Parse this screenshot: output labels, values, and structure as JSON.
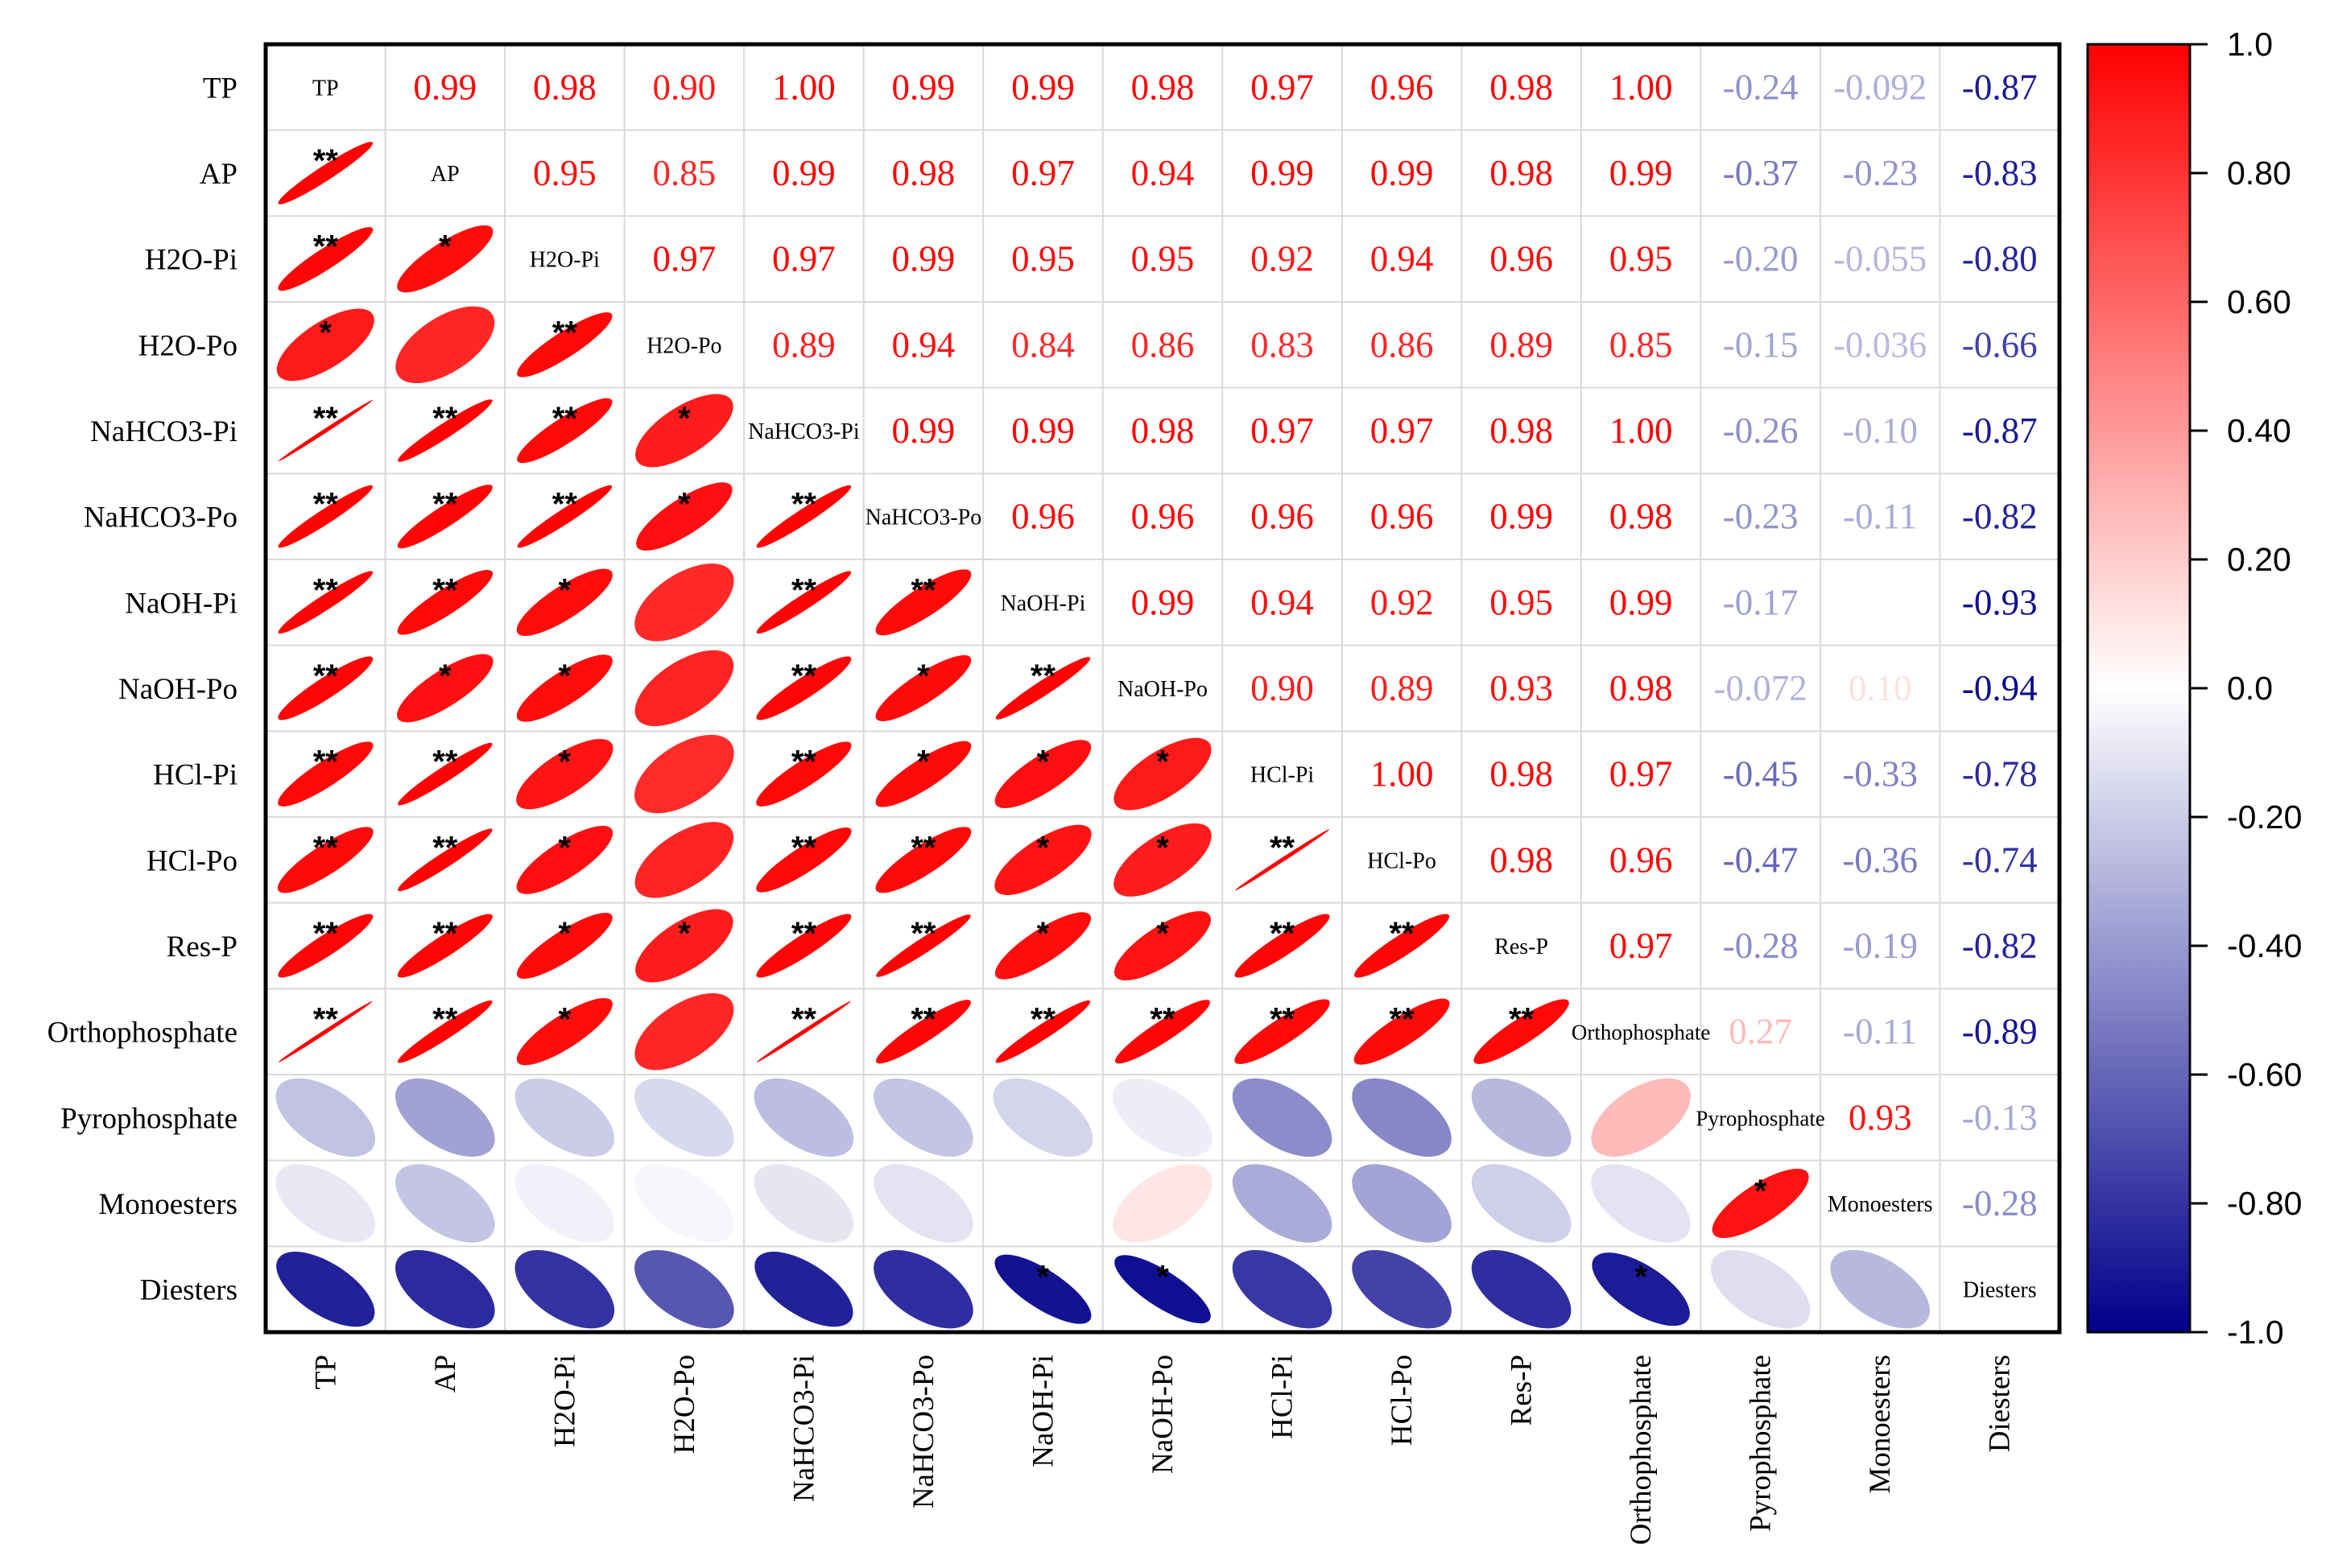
{
  "chart_data": {
    "type": "heatmap",
    "subtype": "correlation-ellipse-matrix",
    "title": "",
    "variables": [
      "TP",
      "AP",
      "H2O-Pi",
      "H2O-Po",
      "NaHCO3-Pi",
      "NaHCO3-Po",
      "NaOH-Pi",
      "NaOH-Po",
      "HCl-Pi",
      "HCl-Po",
      "Res-P",
      "Orthophosphate",
      "Pyrophosphate",
      "Monoesters",
      "Diesters"
    ],
    "upper_labels": [
      [
        null,
        "0.99",
        "0.98",
        "0.90",
        "1.00",
        "0.99",
        "0.99",
        "0.98",
        "0.97",
        "0.96",
        "0.98",
        "1.00",
        "-0.24",
        "-0.092",
        "-0.87"
      ],
      [
        null,
        null,
        "0.95",
        "0.85",
        "0.99",
        "0.98",
        "0.97",
        "0.94",
        "0.99",
        "0.99",
        "0.98",
        "0.99",
        "-0.37",
        "-0.23",
        "-0.83"
      ],
      [
        null,
        null,
        null,
        "0.97",
        "0.97",
        "0.99",
        "0.95",
        "0.95",
        "0.92",
        "0.94",
        "0.96",
        "0.95",
        "-0.20",
        "-0.055",
        "-0.80"
      ],
      [
        null,
        null,
        null,
        null,
        "0.89",
        "0.94",
        "0.84",
        "0.86",
        "0.83",
        "0.86",
        "0.89",
        "0.85",
        "-0.15",
        "-0.036",
        "-0.66"
      ],
      [
        null,
        null,
        null,
        null,
        null,
        "0.99",
        "0.99",
        "0.98",
        "0.97",
        "0.97",
        "0.98",
        "1.00",
        "-0.26",
        "-0.10",
        "-0.87"
      ],
      [
        null,
        null,
        null,
        null,
        null,
        null,
        "0.96",
        "0.96",
        "0.96",
        "0.96",
        "0.99",
        "0.98",
        "-0.23",
        "-0.11",
        "-0.82"
      ],
      [
        null,
        null,
        null,
        null,
        null,
        null,
        null,
        "0.99",
        "0.94",
        "0.92",
        "0.95",
        "0.99",
        "-0.17",
        "",
        "-0.93"
      ],
      [
        null,
        null,
        null,
        null,
        null,
        null,
        null,
        null,
        "0.90",
        "0.89",
        "0.93",
        "0.98",
        "-0.072",
        "0.10",
        "-0.94"
      ],
      [
        null,
        null,
        null,
        null,
        null,
        null,
        null,
        null,
        null,
        "1.00",
        "0.98",
        "0.97",
        "-0.45",
        "-0.33",
        "-0.78"
      ],
      [
        null,
        null,
        null,
        null,
        null,
        null,
        null,
        null,
        null,
        null,
        "0.98",
        "0.96",
        "-0.47",
        "-0.36",
        "-0.74"
      ],
      [
        null,
        null,
        null,
        null,
        null,
        null,
        null,
        null,
        null,
        null,
        null,
        "0.97",
        "-0.28",
        "-0.19",
        "-0.82"
      ],
      [
        null,
        null,
        null,
        null,
        null,
        null,
        null,
        null,
        null,
        null,
        null,
        null,
        "0.27",
        "-0.11",
        "-0.89"
      ],
      [
        null,
        null,
        null,
        null,
        null,
        null,
        null,
        null,
        null,
        null,
        null,
        null,
        null,
        "0.93",
        "-0.13"
      ],
      [
        null,
        null,
        null,
        null,
        null,
        null,
        null,
        null,
        null,
        null,
        null,
        null,
        null,
        null,
        "-0.28"
      ],
      [
        null,
        null,
        null,
        null,
        null,
        null,
        null,
        null,
        null,
        null,
        null,
        null,
        null,
        null,
        null
      ]
    ],
    "significance_lower": [
      [],
      [
        "**"
      ],
      [
        "**",
        "*"
      ],
      [
        "*",
        "",
        "**"
      ],
      [
        "**",
        "**",
        "**",
        "*"
      ],
      [
        "**",
        "**",
        "**",
        "*",
        "**"
      ],
      [
        "**",
        "**",
        "*",
        "",
        "**",
        "**"
      ],
      [
        "**",
        "*",
        "*",
        "",
        "**",
        "*",
        "**"
      ],
      [
        "**",
        "**",
        "*",
        "",
        "**",
        "*",
        "*",
        "*"
      ],
      [
        "**",
        "**",
        "*",
        "",
        "**",
        "**",
        "*",
        "*",
        "**"
      ],
      [
        "**",
        "**",
        "*",
        "*",
        "**",
        "**",
        "*",
        "*",
        "**",
        "**"
      ],
      [
        "**",
        "**",
        "*",
        "",
        "**",
        "**",
        "**",
        "**",
        "**",
        "**",
        "**"
      ],
      [
        "",
        "",
        "",
        "",
        "",
        "",
        "",
        "",
        "",
        "",
        "",
        ""
      ],
      [
        "",
        "",
        "",
        "",
        "",
        "",
        "",
        "",
        "",
        "",
        "",
        "",
        "*"
      ],
      [
        "",
        "",
        "",
        "",
        "",
        "",
        "*",
        "*",
        "",
        "",
        "",
        "*",
        "",
        ""
      ]
    ],
    "colorbar": {
      "min": -1.0,
      "max": 1.0,
      "ticks": [
        "1.0",
        "0.80",
        "0.60",
        "0.40",
        "0.20",
        "0.0",
        "-0.20",
        "-0.40",
        "-0.60",
        "-0.80",
        "-1.0"
      ],
      "colors": {
        "positive": "#ff0000",
        "neutral": "#ffffff",
        "negative": "#00008b"
      }
    },
    "grid": true
  }
}
